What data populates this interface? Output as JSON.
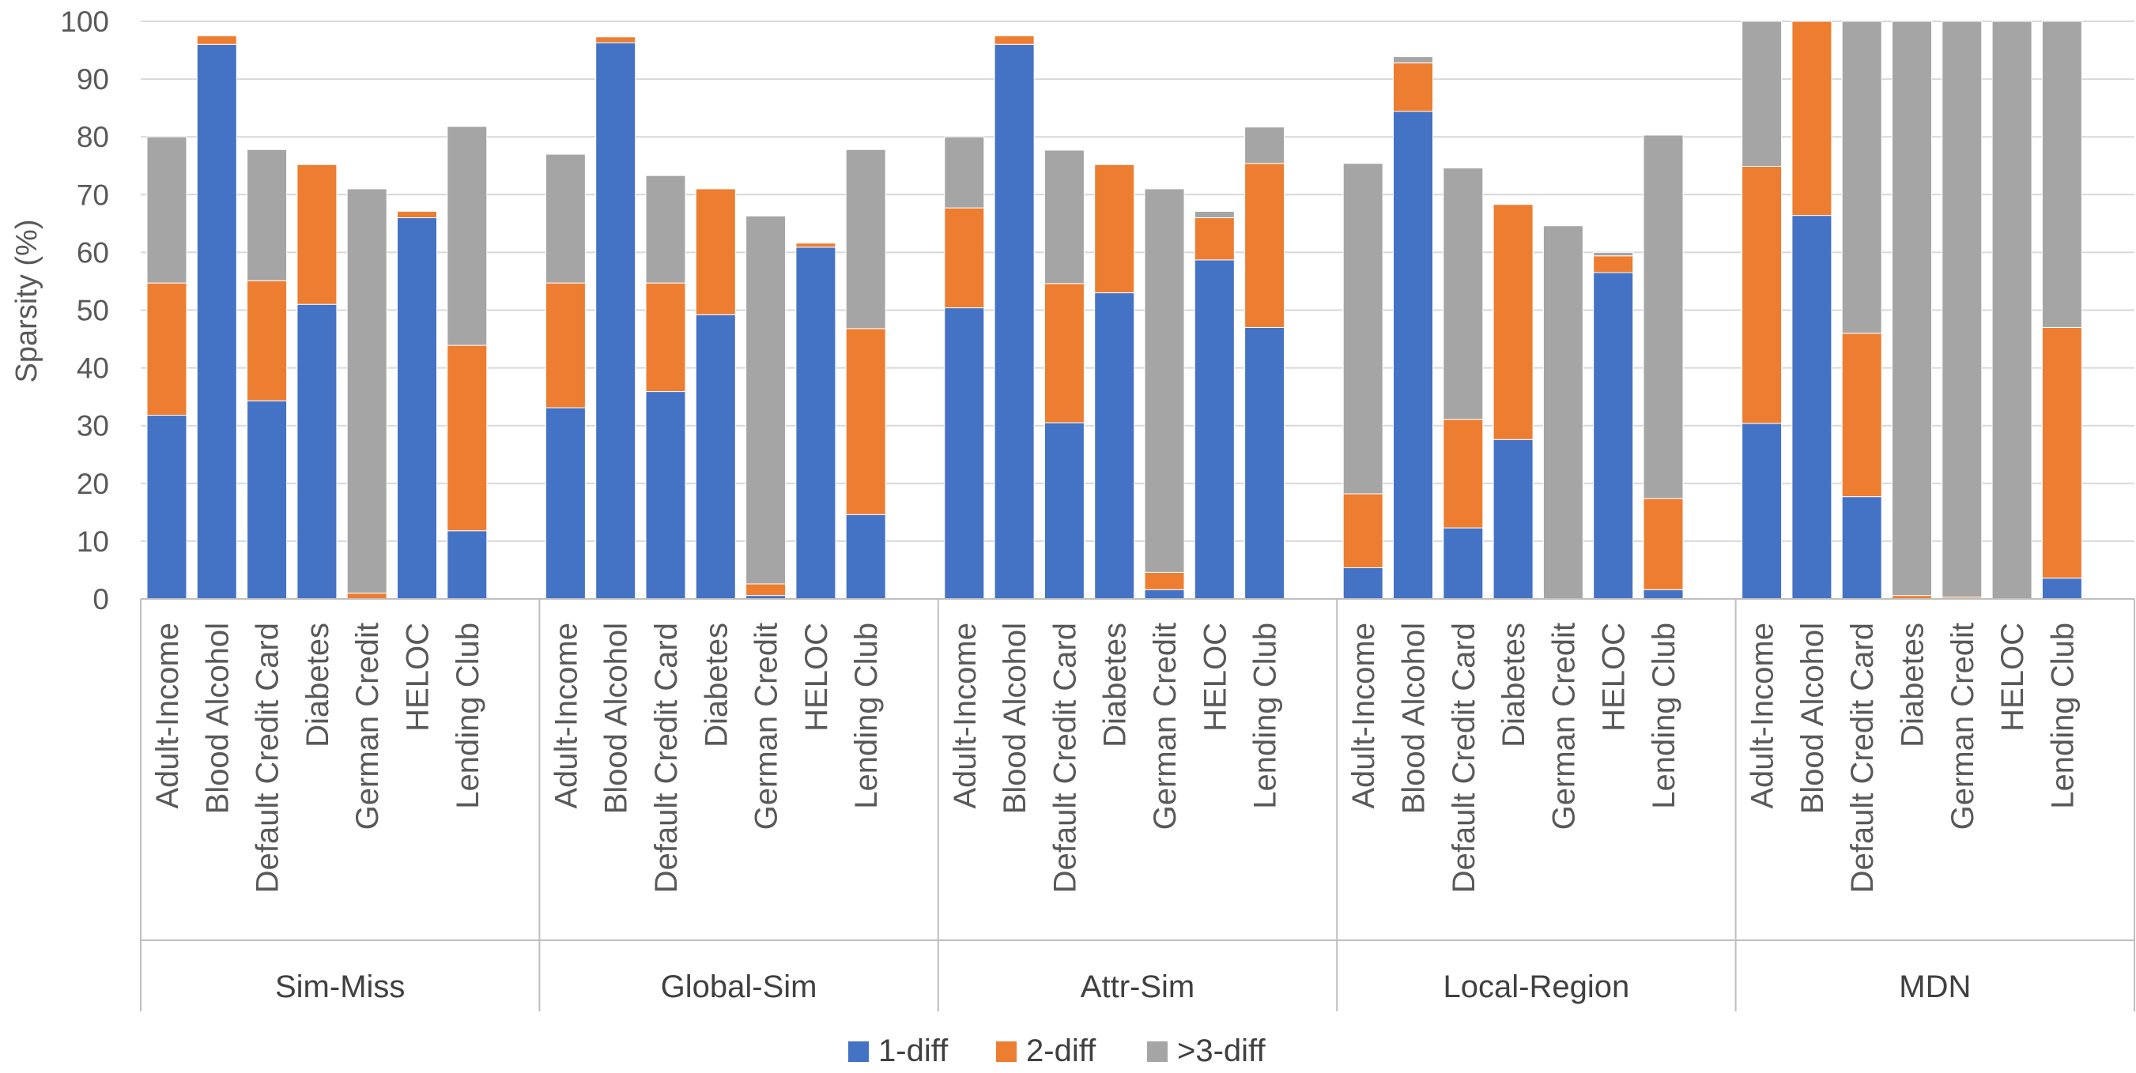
{
  "chart_data": {
    "type": "bar",
    "stacked": true,
    "ylabel": "Sparsity (%)",
    "ylim": [
      0,
      100
    ],
    "y_ticks": [
      "0",
      "10",
      "20",
      "30",
      "40",
      "50",
      "60",
      "70",
      "80",
      "90",
      "100"
    ],
    "grid": true,
    "legend_position": "bottom",
    "colors": {
      "1-diff": "#4472C4",
      "2-diff": "#ED7D31",
      ">3-diff": "#A5A5A5"
    },
    "series_names": [
      "1-diff",
      "2-diff",
      ">3-diff"
    ],
    "groups": [
      {
        "name": "Sim-Miss",
        "categories": [
          "Adult-Income",
          "Blood Alcohol",
          "Default Credit Card",
          "Diabetes",
          "German Credit",
          "HELOC",
          "Lending Club"
        ],
        "series": [
          {
            "name": "1-diff",
            "values": [
              31.8,
              96.0,
              34.3,
              51.0,
              0.0,
              66.0,
              11.8
            ]
          },
          {
            "name": "2-diff",
            "values": [
              22.9,
              1.5,
              20.8,
              24.2,
              1.0,
              1.1,
              32.1
            ]
          },
          {
            "name": ">3-diff",
            "values": [
              25.3,
              0.0,
              22.7,
              0.0,
              70.0,
              0.0,
              37.9
            ]
          }
        ]
      },
      {
        "name": "Global-Sim",
        "categories": [
          "Adult-Income",
          "Blood Alcohol",
          "Default Credit Card",
          "Diabetes",
          "German Credit",
          "HELOC",
          "Lending Club"
        ],
        "series": [
          {
            "name": "1-diff",
            "values": [
              33.1,
              96.3,
              35.9,
              49.2,
              0.6,
              60.9,
              14.6
            ]
          },
          {
            "name": "2-diff",
            "values": [
              21.6,
              1.0,
              18.8,
              21.8,
              2.0,
              0.7,
              32.2
            ]
          },
          {
            "name": ">3-diff",
            "values": [
              22.3,
              0.0,
              18.6,
              0.0,
              63.7,
              0.0,
              31.0
            ]
          }
        ]
      },
      {
        "name": "Attr-Sim",
        "categories": [
          "Adult-Income",
          "Blood Alcohol",
          "Default Credit Card",
          "Diabetes",
          "German Credit",
          "HELOC",
          "Lending Club"
        ],
        "series": [
          {
            "name": "1-diff",
            "values": [
              50.4,
              96.0,
              30.5,
              53.0,
              1.6,
              58.7,
              47.0
            ]
          },
          {
            "name": "2-diff",
            "values": [
              17.3,
              1.5,
              24.1,
              22.2,
              3.0,
              7.3,
              28.4
            ]
          },
          {
            "name": ">3-diff",
            "values": [
              12.3,
              0.0,
              23.1,
              0.0,
              66.4,
              1.1,
              6.3
            ]
          }
        ]
      },
      {
        "name": "Local-Region",
        "categories": [
          "Adult-Income",
          "Blood Alcohol",
          "Default Credit Card",
          "Diabetes",
          "German Credit",
          "HELOC",
          "Lending Club"
        ],
        "series": [
          {
            "name": "1-diff",
            "values": [
              5.4,
              84.4,
              12.3,
              27.6,
              0.0,
              56.5,
              1.6
            ]
          },
          {
            "name": "2-diff",
            "values": [
              12.8,
              8.4,
              18.8,
              40.7,
              0.0,
              2.9,
              15.8
            ]
          },
          {
            "name": ">3-diff",
            "values": [
              57.2,
              1.1,
              43.5,
              0.0,
              64.6,
              0.6,
              62.9
            ]
          }
        ]
      },
      {
        "name": "MDN",
        "categories": [
          "Adult-Income",
          "Blood Alcohol",
          "Default Credit Card",
          "Diabetes",
          "German Credit",
          "HELOC",
          "Lending Club"
        ],
        "series": [
          {
            "name": "1-diff",
            "values": [
              30.4,
              66.4,
              17.7,
              0.0,
              0.0,
              0.0,
              3.6
            ]
          },
          {
            "name": "2-diff",
            "values": [
              44.5,
              33.6,
              28.3,
              0.6,
              0.3,
              0.0,
              43.4
            ]
          },
          {
            "name": ">3-diff",
            "values": [
              25.1,
              0.0,
              54.0,
              99.4,
              99.7,
              100.0,
              53.0
            ]
          }
        ]
      }
    ]
  }
}
